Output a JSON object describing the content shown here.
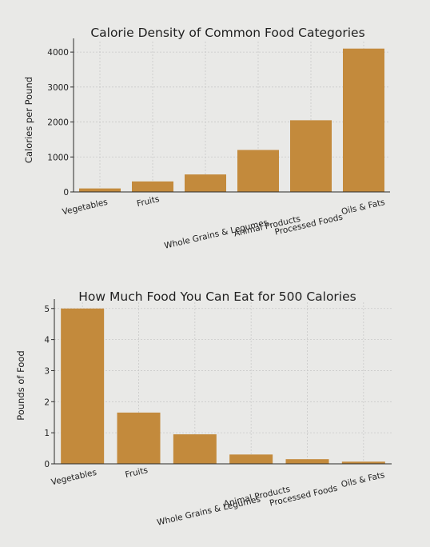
{
  "bar_color": "#c38a3c",
  "chart_data": [
    {
      "type": "bar",
      "title": "Calorie Density of Common Food Categories",
      "xlabel": "",
      "ylabel": "Calories per Pound",
      "categories": [
        "Vegetables",
        "Fruits",
        "Whole Grains & Legumes",
        "Animal Products",
        "Processed Foods",
        "Oils & Fats"
      ],
      "values": [
        100,
        300,
        500,
        1200,
        2050,
        4100
      ],
      "yticks": [
        "0",
        "1000",
        "2000",
        "3000",
        "4000"
      ],
      "ylim": [
        0,
        4300
      ],
      "grid": true
    },
    {
      "type": "bar",
      "title": "How Much Food You Can Eat for 500 Calories",
      "xlabel": "",
      "ylabel": "Pounds of Food",
      "categories": [
        "Vegetables",
        "Fruits",
        "Whole Grains & Legumes",
        "Animal Products",
        "Processed Foods",
        "Oils & Fats"
      ],
      "values": [
        5.0,
        1.65,
        0.95,
        0.3,
        0.15,
        0.07
      ],
      "yticks": [
        "0",
        "1",
        "2",
        "3",
        "4",
        "5"
      ],
      "ylim": [
        0,
        5.2
      ],
      "grid": true
    }
  ]
}
